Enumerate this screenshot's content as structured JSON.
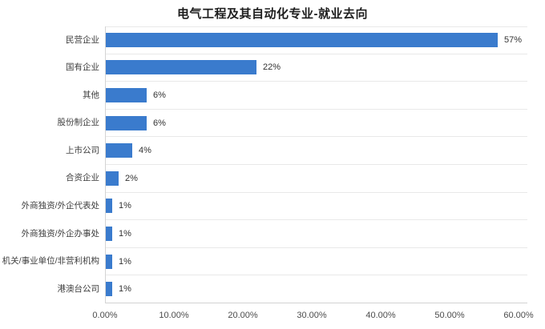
{
  "title": "电气工程及其自动化专业-就业去向",
  "colors": {
    "bar": "#3a7bcd",
    "grid_line": "#e9e9e9",
    "axis_line": "#d2d2d2",
    "title_text": "#1d1d1d",
    "category_text": "#3d3d3d",
    "value_text": "#333333",
    "tick_text": "#4c4c4c",
    "background": "#ffffff"
  },
  "chart_data": {
    "type": "bar",
    "orientation": "horizontal",
    "title": "电气工程及其自动化专业-就业去向",
    "categories": [
      "民营企业",
      "国有企业",
      "其他",
      "股份制企业",
      "上市公司",
      "合资企业",
      "外商独资/外企代表处",
      "外商独资/外企办事处",
      "机关/事业单位/非营利机构",
      "港澳台公司"
    ],
    "values": [
      57,
      22,
      6,
      6,
      4,
      2,
      1,
      1,
      1,
      1
    ],
    "value_labels": [
      "57%",
      "22%",
      "6%",
      "6%",
      "4%",
      "2%",
      "1%",
      "1%",
      "1%",
      "1%"
    ],
    "xlabel": "",
    "ylabel": "",
    "xlim": [
      0,
      60
    ],
    "x_ticks": [
      "0.00%",
      "10.00%",
      "20.00%",
      "30.00%",
      "40.00%",
      "50.00%",
      "60.00%"
    ],
    "x_tick_values": [
      0,
      10,
      20,
      30,
      40,
      50,
      60
    ],
    "grid": "horizontal-row-separators",
    "legend": "none",
    "value_label_position": "outside-end"
  }
}
